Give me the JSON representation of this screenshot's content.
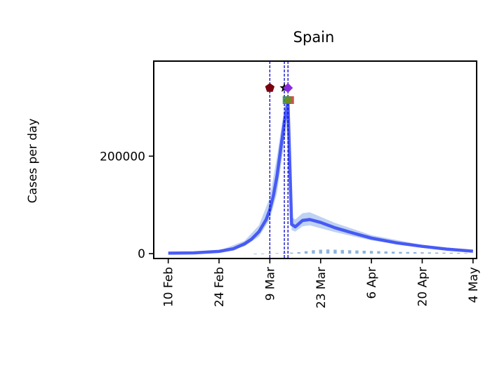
{
  "chart_data": {
    "type": "line",
    "title": "Spain",
    "xlabel": "",
    "ylabel": "Cases per day",
    "x_range_days": [
      "2020-02-06",
      "2020-05-05"
    ],
    "ylim": [
      -10000,
      395000
    ],
    "x_ticks": [
      {
        "date": "2020-02-10",
        "label": "10 Feb"
      },
      {
        "date": "2020-02-24",
        "label": "24 Feb"
      },
      {
        "date": "2020-03-09",
        "label": "9 Mar"
      },
      {
        "date": "2020-03-23",
        "label": "23 Mar"
      },
      {
        "date": "2020-04-06",
        "label": "6 Apr"
      },
      {
        "date": "2020-04-20",
        "label": "20 Apr"
      },
      {
        "date": "2020-05-04",
        "label": "4 May"
      }
    ],
    "y_ticks": [
      {
        "value": 0,
        "label": "0"
      },
      {
        "value": 200000,
        "label": "200000"
      }
    ],
    "grid": false,
    "legend": "none",
    "colors": {
      "model_line": "#3a4cf5",
      "model_band": "#a9c3ee",
      "observed_bars": "#8fb4d9",
      "intervention_lines": "#0000cc"
    },
    "series": [
      {
        "x": [
          "2020-02-10",
          "2020-02-17",
          "2020-02-24",
          "2020-02-28",
          "2020-03-02",
          "2020-03-04",
          "2020-03-06",
          "2020-03-08",
          "2020-03-09",
          "2020-03-10",
          "2020-03-11",
          "2020-03-12",
          "2020-03-13",
          "2020-03-14",
          "2020-03-15",
          "2020-03-16",
          "2020-03-18",
          "2020-03-20",
          "2020-03-23",
          "2020-03-27",
          "2020-04-01",
          "2020-04-06",
          "2020-04-13",
          "2020-04-20",
          "2020-04-27",
          "2020-05-04"
        ],
        "y": [
          1000,
          1500,
          4500,
          10000,
          20000,
          30000,
          45000,
          70000,
          90000,
          120000,
          160000,
          215000,
          270000,
          310000,
          60000,
          55000,
          68000,
          70000,
          64000,
          53000,
          42000,
          32000,
          22000,
          15000,
          9000,
          5000
        ]
      },
      {
        "x": [
          "2020-02-10",
          "2020-02-24",
          "2020-03-02",
          "2020-03-06",
          "2020-03-09",
          "2020-03-11",
          "2020-03-13",
          "2020-03-14",
          "2020-03-15",
          "2020-03-16",
          "2020-03-18",
          "2020-03-20",
          "2020-03-27",
          "2020-04-06",
          "2020-04-20",
          "2020-05-04"
        ],
        "y_low": [
          700,
          3500,
          15000,
          35000,
          70000,
          125000,
          230000,
          270000,
          48000,
          45000,
          56000,
          58000,
          44000,
          27000,
          12000,
          4000
        ],
        "y_high": [
          1400,
          6000,
          26000,
          58000,
          115000,
          200000,
          300000,
          330000,
          75000,
          70000,
          83000,
          85000,
          63000,
          38000,
          18000,
          6500
        ]
      },
      {
        "x": [
          "2020-03-05",
          "2020-03-07",
          "2020-03-09",
          "2020-03-11",
          "2020-03-13",
          "2020-03-15",
          "2020-03-17",
          "2020-03-19",
          "2020-03-21",
          "2020-03-23",
          "2020-03-25",
          "2020-03-27",
          "2020-03-29",
          "2020-03-31",
          "2020-04-02",
          "2020-04-04",
          "2020-04-06",
          "2020-04-08",
          "2020-04-10",
          "2020-04-12",
          "2020-04-14",
          "2020-04-16",
          "2020-04-18",
          "2020-04-20",
          "2020-04-22",
          "2020-04-24",
          "2020-04-26",
          "2020-04-28",
          "2020-04-30",
          "2020-05-02"
        ],
        "y": [
          100,
          200,
          500,
          1000,
          1500,
          2000,
          3000,
          5000,
          7000,
          8000,
          8500,
          8000,
          7500,
          7000,
          6500,
          6000,
          5500,
          5000,
          4500,
          4000,
          3500,
          3300,
          3000,
          2800,
          2500,
          2200,
          2000,
          1800,
          1500,
          1200
        ]
      }
    ],
    "intervention_dates": [
      "2020-03-09",
      "2020-03-13",
      "2020-03-14"
    ],
    "intervention_markers": [
      {
        "date": "2020-03-09",
        "value": 340000,
        "shape": "pentagon",
        "color": "#7a0010"
      },
      {
        "date": "2020-03-13",
        "value": 340000,
        "shape": "star",
        "color": "#000000"
      },
      {
        "date": "2020-03-14",
        "value": 340000,
        "shape": "diamond",
        "color": "#8a2be2"
      },
      {
        "date": "2020-03-14",
        "value": 315000,
        "shape": "square",
        "color": "#c0392b"
      },
      {
        "date": "2020-03-14",
        "value": 315000,
        "shape": "square",
        "color": "#2e8b57"
      },
      {
        "date": "2020-03-14",
        "value": 315000,
        "shape": "circle",
        "color": "#6b8e23"
      }
    ]
  }
}
